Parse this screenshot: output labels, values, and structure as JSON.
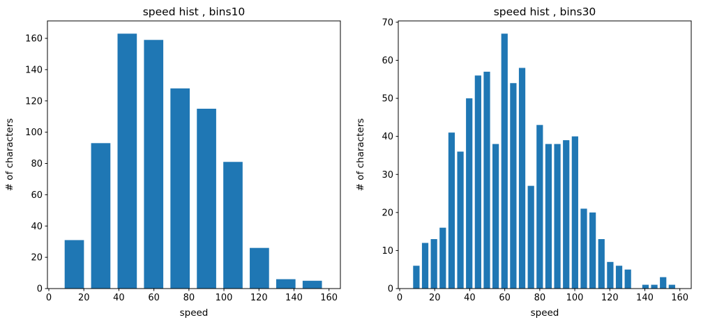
{
  "figure": {
    "background": "#ffffff",
    "bar_color": "#1f77b4",
    "axis_color": "#000000"
  },
  "chart_data": [
    {
      "type": "bar",
      "subtype": "histogram",
      "title": "speed hist , bins10",
      "xlabel": "speed",
      "ylabel": "# of characters",
      "bins": 10,
      "bin_start": 7,
      "bin_end": 158,
      "counts": [
        31,
        93,
        163,
        159,
        128,
        115,
        81,
        26,
        6,
        5
      ],
      "xticks": [
        0,
        20,
        40,
        60,
        80,
        100,
        120,
        140,
        160
      ],
      "yticks": [
        0,
        20,
        40,
        60,
        80,
        100,
        120,
        140,
        160
      ],
      "xlim": [
        -0.8,
        166.5
      ],
      "ylim": [
        0,
        171.15
      ],
      "grid": false,
      "legend": false,
      "bar_color": "#1f77b4",
      "rwidth": 0.73
    },
    {
      "type": "bar",
      "subtype": "histogram",
      "title": "speed hist , bins30",
      "xlabel": "speed",
      "ylabel": "# of characters",
      "bins": 30,
      "bin_start": 7,
      "bin_end": 158,
      "counts": [
        6,
        12,
        13,
        16,
        41,
        36,
        50,
        56,
        57,
        38,
        67,
        54,
        58,
        27,
        43,
        38,
        38,
        39,
        40,
        21,
        20,
        13,
        7,
        6,
        5,
        0,
        1,
        1,
        3,
        1
      ],
      "xticks": [
        0,
        20,
        40,
        60,
        80,
        100,
        120,
        140,
        160
      ],
      "yticks": [
        0,
        10,
        20,
        30,
        40,
        50,
        60,
        70
      ],
      "xlim": [
        -0.8,
        166.5
      ],
      "ylim": [
        0,
        70.35
      ],
      "grid": false,
      "legend": false,
      "bar_color": "#1f77b4",
      "rwidth": 0.73
    }
  ]
}
